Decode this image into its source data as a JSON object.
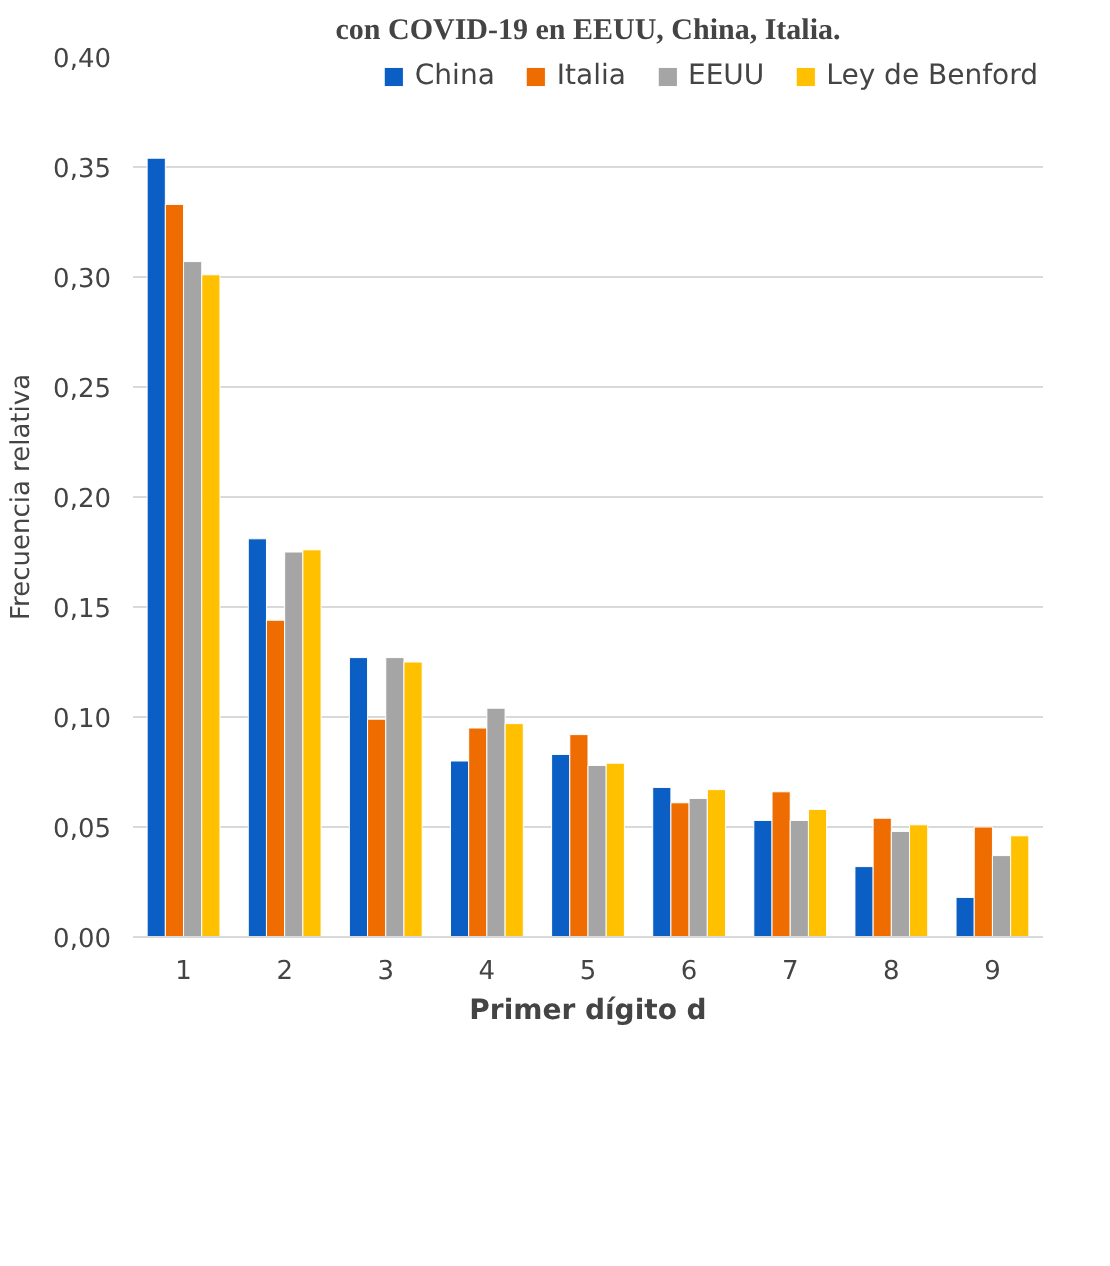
{
  "chart_data": {
    "type": "bar",
    "title": "con COVID-19 en EEUU, China, Italia.",
    "xlabel": "Primer dígito d",
    "ylabel": "Frecuencia relativa",
    "categories": [
      "1",
      "2",
      "3",
      "4",
      "5",
      "6",
      "7",
      "8",
      "9"
    ],
    "series": [
      {
        "name": "China",
        "color": "#0b5fc4",
        "values": [
          0.354,
          0.181,
          0.127,
          0.08,
          0.083,
          0.068,
          0.053,
          0.032,
          0.018
        ]
      },
      {
        "name": "Italia",
        "color": "#ef6c00",
        "values": [
          0.333,
          0.144,
          0.099,
          0.095,
          0.092,
          0.061,
          0.066,
          0.054,
          0.05
        ]
      },
      {
        "name": "EEUU",
        "color": "#a5a5a5",
        "values": [
          0.307,
          0.175,
          0.127,
          0.104,
          0.078,
          0.063,
          0.053,
          0.048,
          0.037
        ]
      },
      {
        "name": "Ley de Benford",
        "color": "#ffc000",
        "values": [
          0.301,
          0.176,
          0.125,
          0.097,
          0.079,
          0.067,
          0.058,
          0.051,
          0.046
        ]
      }
    ],
    "ylim": [
      0,
      0.4
    ],
    "yticks": [
      {
        "value": 0,
        "label": "0,00"
      },
      {
        "value": 0.05,
        "label": "0,05"
      },
      {
        "value": 0.1,
        "label": "0,10"
      },
      {
        "value": 0.15,
        "label": "0,15"
      },
      {
        "value": 0.2,
        "label": "0,20"
      },
      {
        "value": 0.25,
        "label": "0,25"
      },
      {
        "value": 0.3,
        "label": "0,30"
      },
      {
        "value": 0.35,
        "label": "0,35"
      },
      {
        "value": 0.4,
        "label": "0,40"
      }
    ],
    "grid": "y",
    "legend": "top"
  }
}
